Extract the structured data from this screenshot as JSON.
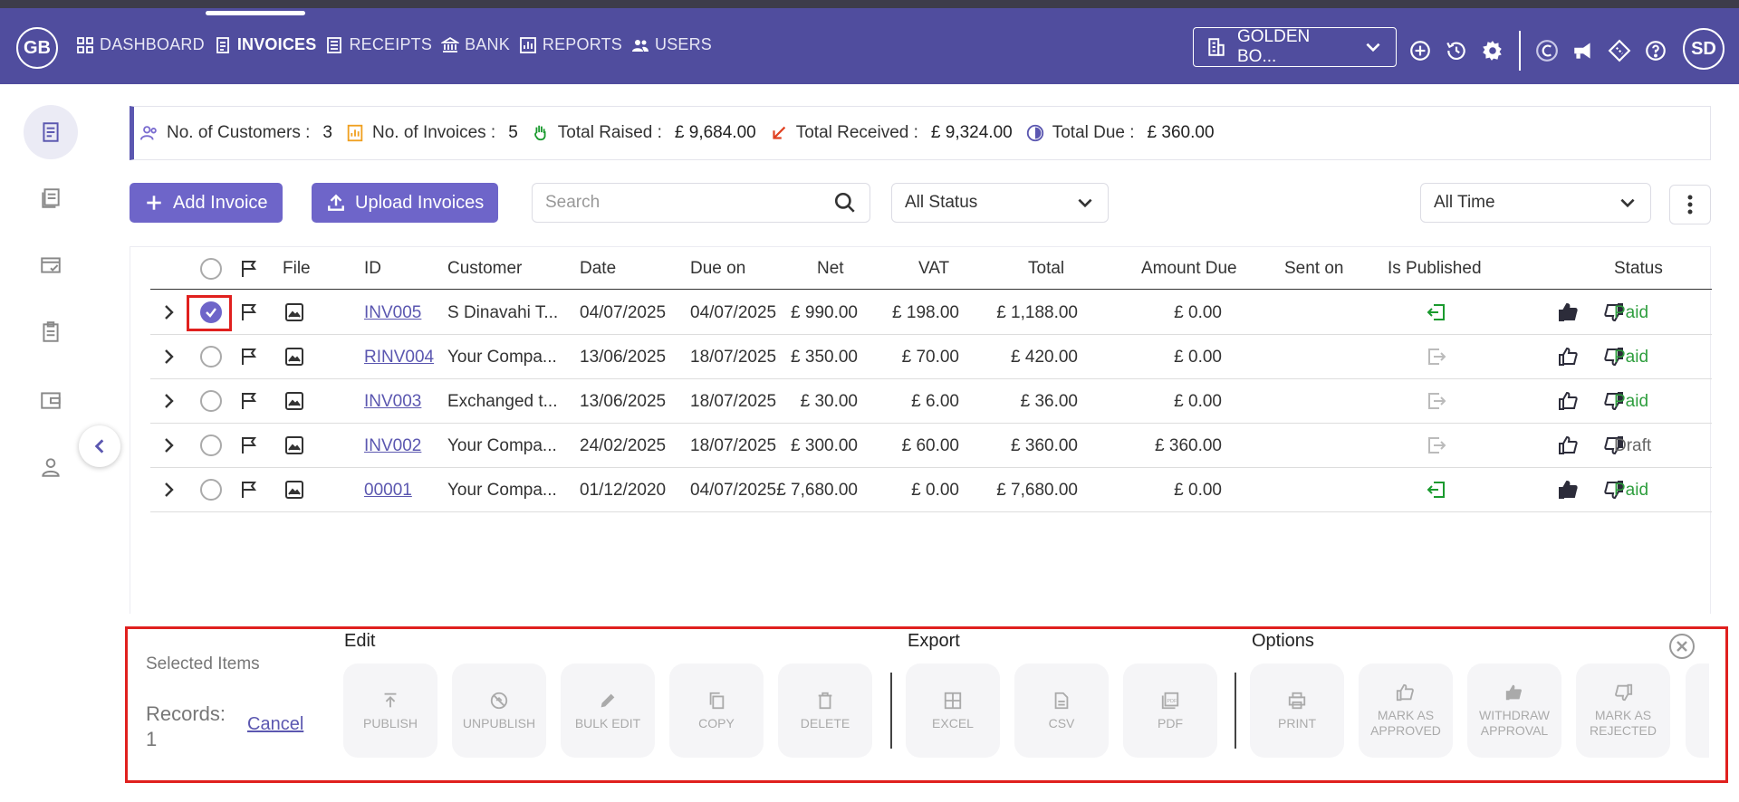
{
  "brand": {
    "initials": "GB"
  },
  "nav": {
    "items": [
      {
        "label": "DASHBOARD",
        "icon": "grid-icon"
      },
      {
        "label": "INVOICES",
        "icon": "invoice-icon"
      },
      {
        "label": "RECEIPTS",
        "icon": "receipt-icon"
      },
      {
        "label": "BANK",
        "icon": "bank-icon"
      },
      {
        "label": "REPORTS",
        "icon": "chart-icon"
      },
      {
        "label": "USERS",
        "icon": "users-icon"
      }
    ],
    "active": "INVOICES"
  },
  "company": {
    "name": "GOLDEN BO..."
  },
  "user": {
    "initials": "SD"
  },
  "stats": {
    "customers_label": "No. of Customers :",
    "customers_value": "3",
    "invoices_label": "No. of Invoices :",
    "invoices_value": "5",
    "raised_label": "Total Raised :",
    "raised_value": "£ 9,684.00",
    "received_label": "Total Received :",
    "received_value": "£ 9,324.00",
    "due_label": "Total Due :",
    "due_value": "£ 360.00"
  },
  "toolbar": {
    "add_label": "Add Invoice",
    "upload_label": "Upload Invoices",
    "search_placeholder": "Search",
    "status_value": "All Status",
    "time_value": "All Time"
  },
  "table": {
    "columns": {
      "file": "File",
      "id": "ID",
      "customer": "Customer",
      "date": "Date",
      "due_on": "Due on",
      "net": "Net",
      "vat": "VAT",
      "total": "Total",
      "amount_due": "Amount Due",
      "sent_on": "Sent on",
      "is_published": "Is Published",
      "status": "Status"
    },
    "rows": [
      {
        "id": "INV005",
        "customer": "S Dinavahi T...",
        "date": "04/07/2025",
        "due_on": "04/07/2025",
        "net": "£ 990.00",
        "vat": "£ 198.00",
        "total": "£ 1,188.00",
        "amount_due": "£ 0.00",
        "sent_on": "",
        "published": true,
        "status": "Paid",
        "selected": true
      },
      {
        "id": "RINV004",
        "customer": "Your Compa...",
        "date": "13/06/2025",
        "due_on": "18/07/2025",
        "net": "£ 350.00",
        "vat": "£ 70.00",
        "total": "£ 420.00",
        "amount_due": "£ 0.00",
        "sent_on": "",
        "published": false,
        "status": "Paid",
        "selected": false
      },
      {
        "id": "INV003",
        "customer": "Exchanged t...",
        "date": "13/06/2025",
        "due_on": "18/07/2025",
        "net": "£ 30.00",
        "vat": "£ 6.00",
        "total": "£ 36.00",
        "amount_due": "£ 0.00",
        "sent_on": "",
        "published": false,
        "status": "Paid",
        "selected": false
      },
      {
        "id": "INV002",
        "customer": "Your Compa...",
        "date": "24/02/2025",
        "due_on": "18/07/2025",
        "net": "£ 300.00",
        "vat": "£ 60.00",
        "total": "£ 360.00",
        "amount_due": "£ 360.00",
        "sent_on": "",
        "published": false,
        "status": "Draft",
        "selected": false
      },
      {
        "id": "00001",
        "customer": "Your Compa...",
        "date": "01/12/2020",
        "due_on": "04/07/2025",
        "net": "£ 7,680.00",
        "vat": "£ 0.00",
        "total": "£ 7,680.00",
        "amount_due": "£ 0.00",
        "sent_on": "",
        "published": true,
        "status": "Paid",
        "selected": false
      }
    ]
  },
  "bulk": {
    "selected_label": "Selected Items",
    "records_label": "Records:",
    "records_count": "1",
    "cancel_label": "Cancel",
    "edit_title": "Edit",
    "export_title": "Export",
    "options_title": "Options",
    "edit_actions": [
      "PUBLISH",
      "UNPUBLISH",
      "BULK EDIT",
      "COPY",
      "DELETE"
    ],
    "export_actions": [
      "EXCEL",
      "CSV",
      "PDF"
    ],
    "option_actions": [
      "PRINT",
      "MARK AS APPROVED",
      "WITHDRAW APPROVAL",
      "MARK AS REJECTED"
    ]
  },
  "colors": {
    "nav_bg": "#504d9e",
    "accent": "#6e65c9",
    "paid": "#2e9e3e",
    "highlight": "#e0201e"
  }
}
